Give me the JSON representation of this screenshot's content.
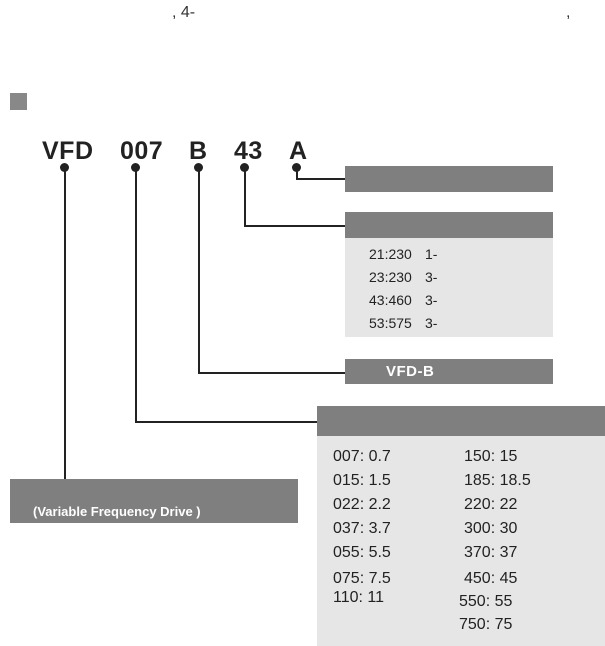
{
  "header": {
    "line1": ", 4-",
    "line2": ","
  },
  "model_code": {
    "vfd": "VFD",
    "capacity": "007",
    "series": "B",
    "voltage": "43",
    "version": "A"
  },
  "boxes": {
    "version_label": "",
    "voltage_label": "",
    "series_label": "VFD-B",
    "capacity_label": "",
    "product_label": "(Variable Frequency Drive )"
  },
  "voltage_options": [
    {
      "code": "21:230",
      "phase": "1-"
    },
    {
      "code": "23:230",
      "phase": "3-"
    },
    {
      "code": "43:460",
      "phase": "3-"
    },
    {
      "code": "53:575",
      "phase": "3-"
    }
  ],
  "capacity_left": [
    "007: 0.7",
    "015: 1.5",
    "022: 2.2",
    "037: 3.7",
    "055: 5.5",
    "075: 7.5",
    "110: 11"
  ],
  "capacity_right": [
    "150: 15",
    "185: 18.5",
    "220: 22",
    "300: 30",
    "370: 37",
    "450: 45",
    "550: 55",
    "750: 75"
  ],
  "colors": {
    "bar": "#7f7f7f",
    "panel": "#e6e6e6",
    "square": "#888888",
    "line": "#222222"
  }
}
